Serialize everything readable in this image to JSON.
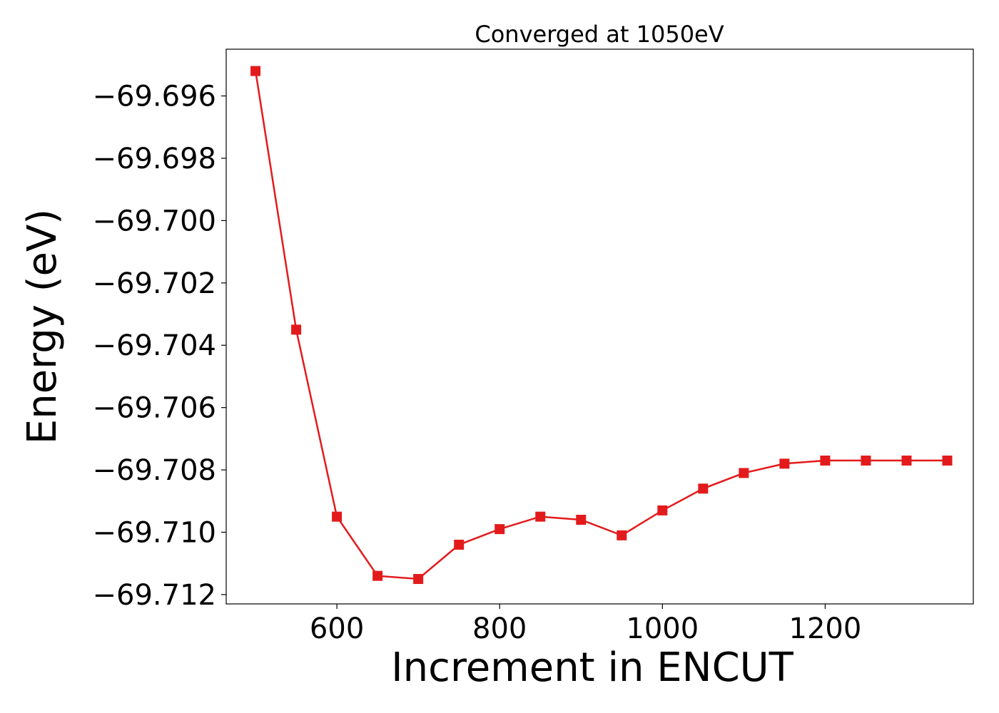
{
  "chart_data": {
    "type": "line",
    "title": "Converged at 1050eV",
    "xlabel": "Increment in ENCUT",
    "ylabel": "Energy (eV)",
    "xlim": [
      464,
      1382
    ],
    "ylim": [
      -69.7123,
      -69.6945
    ],
    "xticks": [
      600,
      800,
      1000,
      1200
    ],
    "xtick_labels": [
      "600",
      "800",
      "1000",
      "1200"
    ],
    "yticks": [
      -69.696,
      -69.698,
      -69.7,
      -69.702,
      -69.704,
      -69.706,
      -69.708,
      -69.71,
      -69.712
    ],
    "ytick_labels": [
      "−69.696",
      "−69.698",
      "−69.700",
      "−69.702",
      "−69.704",
      "−69.706",
      "−69.708",
      "−69.710",
      "−69.712"
    ],
    "grid": false,
    "series": [
      {
        "color": "#e31a1c",
        "marker": "square",
        "x": [
          500,
          550,
          600,
          650,
          700,
          750,
          800,
          850,
          900,
          950,
          1000,
          1050,
          1100,
          1150,
          1200,
          1250,
          1300,
          1350
        ],
        "y": [
          -69.6952,
          -69.7035,
          -69.7095,
          -69.7114,
          -69.7115,
          -69.7104,
          -69.7099,
          -69.7095,
          -69.7096,
          -69.7101,
          -69.7093,
          -69.7086,
          -69.7081,
          -69.7078,
          -69.7077,
          -69.7077,
          -69.7077,
          -69.7077
        ]
      }
    ]
  }
}
